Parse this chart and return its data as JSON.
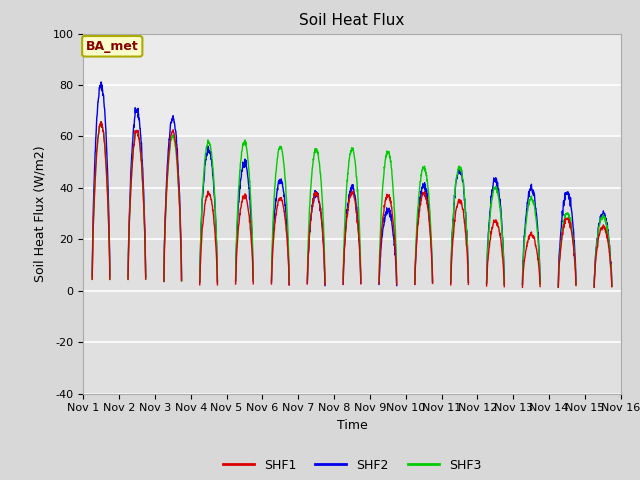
{
  "title": "Soil Heat Flux",
  "xlabel": "Time",
  "ylabel": "Soil Heat Flux (W/m2)",
  "ylim": [
    -40,
    100
  ],
  "xlim": [
    0,
    15
  ],
  "background_color": "#e0e0e0",
  "plot_bg_color": "#e0e0e0",
  "upper_bg_color": "#f5f5f5",
  "grid_color": "#ffffff",
  "shf1_color": "#dd0000",
  "shf2_color": "#0000ee",
  "shf3_color": "#00cc00",
  "annotation_text": "BA_met",
  "annotation_bg": "#ffffcc",
  "annotation_edge": "#aaaa00",
  "annotation_text_color": "#880000",
  "xtick_labels": [
    "Nov 1",
    "Nov 2",
    "Nov 3",
    "Nov 4",
    "Nov 5",
    "Nov 6",
    "Nov 7",
    "Nov 8",
    "Nov 9",
    "Nov 10",
    "Nov 11",
    "Nov 12",
    "Nov 13",
    "Nov 14",
    "Nov 15",
    "Nov 16"
  ],
  "xtick_positions": [
    0,
    1,
    2,
    3,
    4,
    5,
    6,
    7,
    8,
    9,
    10,
    11,
    12,
    13,
    14,
    15
  ],
  "ytick_labels": [
    "-40",
    "-20",
    "0",
    "20",
    "40",
    "60",
    "80",
    "100"
  ],
  "ytick_positions": [
    -40,
    -20,
    0,
    20,
    40,
    60,
    80,
    100
  ],
  "legend_labels": [
    "SHF1",
    "SHF2",
    "SHF3"
  ],
  "line_width": 1.0,
  "title_fontsize": 11,
  "label_fontsize": 9,
  "tick_fontsize": 8,
  "legend_fontsize": 9
}
